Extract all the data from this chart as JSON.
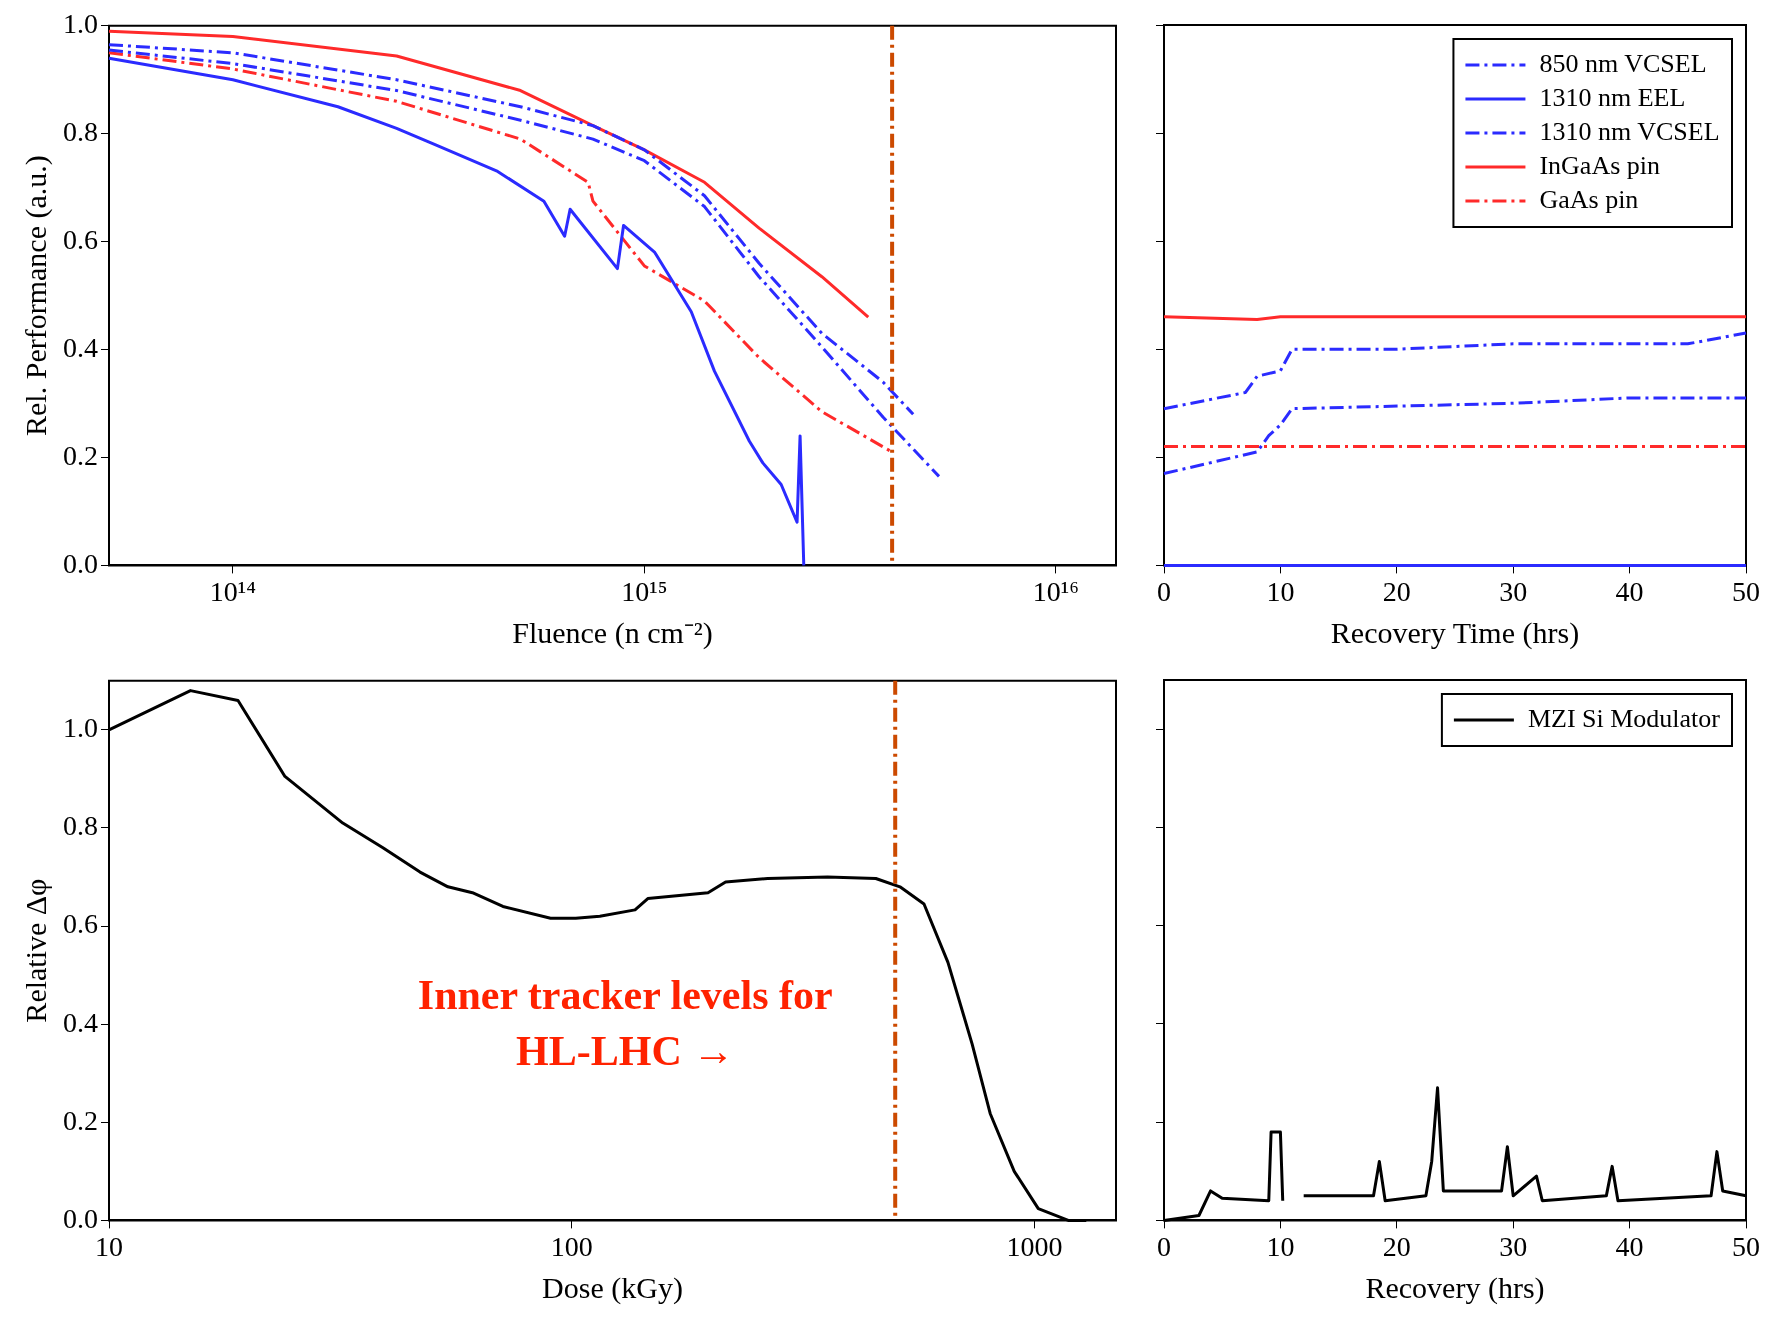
{
  "chart_data": [
    {
      "type": "line",
      "xlabel": "Fluence (n cm⁻²)",
      "ylabel": "Rel. Performance (a.u.)",
      "log": "x",
      "xlim": [
        50000000000000.0,
        1.4e+16
      ],
      "xticks": [
        {
          "value": 100000000000000.0,
          "label": "10¹⁴"
        },
        {
          "value": 1000000000000000.0,
          "label": "10¹⁵"
        },
        {
          "value": 1e+16,
          "label": "10¹⁶"
        }
      ],
      "ylim": [
        0,
        1
      ],
      "yticks": [
        {
          "value": 0,
          "label": "0.0"
        },
        {
          "value": 0.2,
          "label": "0.2"
        },
        {
          "value": 0.4,
          "label": "0.4"
        },
        {
          "value": 0.6,
          "label": "0.6"
        },
        {
          "value": 0.8,
          "label": "0.8"
        },
        {
          "value": 1,
          "label": "1.0"
        }
      ],
      "grid": false,
      "legend": false,
      "marker": "none",
      "series": [
        {
          "color": "#2b2bff",
          "line_style": "dashed",
          "x": [
            50000000000000.0,
            100000000000000.0,
            250000000000000.0,
            500000000000000.0,
            750000000000000.0,
            1000000000000000.0,
            1400000000000000.0,
            1900000000000000.0,
            2700000000000000.0,
            3800000000000000.0,
            4500000000000000.0
          ],
          "values": [
            0.965,
            0.95,
            0.9,
            0.85,
            0.815,
            0.77,
            0.685,
            0.56,
            0.43,
            0.34,
            0.28
          ]
        },
        {
          "color": "#2b2bff",
          "line_style": "solid",
          "x": [
            50000000000000.0,
            100000000000000.0,
            180000000000000.0,
            250000000000000.0,
            310000000000000.0,
            440000000000000.0,
            570000000000000.0,
            640000000000000.0,
            660000000000000.0,
            860000000000000.0,
            890000000000000.0,
            1060000000000000.0,
            1300000000000000.0,
            1480000000000000.0,
            1800000000000000.0,
            1940000000000000.0,
            2150000000000000.0,
            2350000000000000.0,
            2390000000000000.0,
            2440000000000000.0
          ],
          "values": [
            0.94,
            0.9,
            0.85,
            0.81,
            0.78,
            0.73,
            0.675,
            0.61,
            0.66,
            0.55,
            0.63,
            0.58,
            0.47,
            0.36,
            0.23,
            0.19,
            0.15,
            0.08,
            0.24,
            0
          ]
        },
        {
          "color": "#2b2bff",
          "line_style": "dashed",
          "x": [
            50000000000000.0,
            100000000000000.0,
            250000000000000.0,
            500000000000000.0,
            750000000000000.0,
            1000000000000000.0,
            1400000000000000.0,
            1900000000000000.0,
            2700000000000000.0,
            3800000000000000.0,
            5200000000000000.0
          ],
          "values": [
            0.955,
            0.93,
            0.88,
            0.825,
            0.79,
            0.75,
            0.665,
            0.535,
            0.405,
            0.275,
            0.165
          ]
        },
        {
          "color": "#ff2a2a",
          "line_style": "solid",
          "x": [
            50000000000000.0,
            100000000000000.0,
            250000000000000.0,
            500000000000000.0,
            750000000000000.0,
            1000000000000000.0,
            1400000000000000.0,
            1900000000000000.0,
            2700000000000000.0,
            3500000000000000.0
          ],
          "values": [
            0.99,
            0.98,
            0.944,
            0.88,
            0.815,
            0.77,
            0.71,
            0.625,
            0.535,
            0.46
          ]
        },
        {
          "color": "#ff2a2a",
          "line_style": "dashed",
          "x": [
            50000000000000.0,
            100000000000000.0,
            250000000000000.0,
            500000000000000.0,
            730000000000000.0,
            750000000000000.0,
            1000000000000000.0,
            1400000000000000.0,
            1900000000000000.0,
            2700000000000000.0,
            4000000000000000.0
          ],
          "values": [
            0.95,
            0.92,
            0.86,
            0.79,
            0.71,
            0.675,
            0.555,
            0.49,
            0.385,
            0.285,
            0.21
          ]
        }
      ],
      "ref_lines": [
        {
          "axis": "x",
          "value": 4000000000000000.0,
          "color": "#cc4a00",
          "line_style": "dashed"
        }
      ]
    },
    {
      "type": "line",
      "xlabel": "Recovery Time (hrs)",
      "xlim": [
        0,
        50
      ],
      "xticks": [
        0,
        10,
        20,
        30,
        40,
        50
      ],
      "ylim": [
        0,
        1
      ],
      "yticks": [
        0,
        0.2,
        0.4,
        0.6,
        0.8,
        1
      ],
      "tick_labels": "x",
      "grid": false,
      "legend": "top right",
      "marker": "none",
      "series": [
        {
          "name": "850 nm VCSEL",
          "color": "#2b2bff",
          "line_style": "dashed",
          "x": [
            0,
            7,
            8,
            10,
            11,
            20,
            30,
            45,
            50
          ],
          "values": [
            0.29,
            0.32,
            0.35,
            0.36,
            0.4,
            0.4,
            0.41,
            0.41,
            0.43
          ]
        },
        {
          "name": "1310 nm EEL",
          "color": "#2b2bff",
          "line_style": "solid",
          "x": [
            0,
            50
          ],
          "values": [
            0,
            0
          ]
        },
        {
          "name": "1310 nm VCSEL",
          "color": "#2b2bff",
          "line_style": "dashed",
          "x": [
            0,
            8,
            9,
            10,
            11,
            30,
            40,
            50
          ],
          "values": [
            0.17,
            0.21,
            0.24,
            0.26,
            0.29,
            0.3,
            0.31,
            0.31
          ]
        },
        {
          "name": "InGaAs pin",
          "color": "#ff2a2a",
          "line_style": "solid",
          "x": [
            0,
            8,
            10,
            50
          ],
          "values": [
            0.46,
            0.455,
            0.46,
            0.46
          ]
        },
        {
          "name": "GaAs pin",
          "color": "#ff2a2a",
          "line_style": "dashed",
          "x": [
            0,
            50
          ],
          "values": [
            0.22,
            0.22
          ]
        }
      ]
    },
    {
      "type": "line",
      "xlabel": "Dose (kGy)",
      "ylabel": "Relative Δφ",
      "log": "x",
      "xlim": [
        10,
        1500
      ],
      "xticks": [
        10,
        100,
        1000
      ],
      "ylim": [
        0,
        1.1
      ],
      "yticks": [
        {
          "value": 0,
          "label": "0.0"
        },
        {
          "value": 0.2,
          "label": "0.2"
        },
        {
          "value": 0.4,
          "label": "0.4"
        },
        {
          "value": 0.6,
          "label": "0.6"
        },
        {
          "value": 0.8,
          "label": "0.8"
        },
        {
          "value": 1,
          "label": "1.0"
        }
      ],
      "grid": false,
      "legend": false,
      "marker": "none",
      "series": [
        {
          "color": "#000000",
          "line_style": "solid",
          "x": [
            10,
            15,
            19,
            24,
            32,
            39,
            47,
            54,
            61,
            71,
            90,
            102,
            115,
            137,
            146,
            197,
            215,
            265,
            357,
            454,
            512,
            577,
            650,
            733,
            802,
            904,
            1019,
            1183,
            1294
          ],
          "values": [
            1,
            1.08,
            1.06,
            0.905,
            0.81,
            0.76,
            0.71,
            0.68,
            0.668,
            0.64,
            0.616,
            0.616,
            0.62,
            0.633,
            0.656,
            0.668,
            0.69,
            0.697,
            0.7,
            0.697,
            0.68,
            0.645,
            0.526,
            0.36,
            0.218,
            0.1,
            0.024,
            0,
            0
          ]
        }
      ],
      "ref_lines": [
        {
          "axis": "x",
          "value": 500,
          "label": "Inner tracker levels for HL-LHC →",
          "color": "#cc4a00",
          "line_style": "dashed"
        }
      ]
    },
    {
      "type": "line",
      "xlabel": "Recovery (hrs)",
      "xlim": [
        0,
        50
      ],
      "xticks": [
        0,
        10,
        20,
        30,
        40,
        50
      ],
      "ylim": [
        0,
        1.1
      ],
      "yticks": [
        0,
        0.2,
        0.4,
        0.6,
        0.8,
        1
      ],
      "tick_labels": "x",
      "grid": false,
      "legend": "top right",
      "marker": "none",
      "series": [
        {
          "name": "MZI Si Modulator",
          "color": "#000000",
          "line_style": "solid",
          "x": [
            0,
            3,
            4,
            5,
            9,
            9.2,
            10,
            10.2,
            11,
            12,
            18,
            18.5,
            19,
            22.5,
            23,
            23.5,
            24,
            29,
            29.5,
            30,
            32,
            32.5,
            38,
            38.5,
            39,
            47,
            47.5,
            48,
            50
          ],
          "values": [
            0,
            0.01,
            0.06,
            0.045,
            0.04,
            0.18,
            0.18,
            0.04,
            null,
            0.05,
            0.05,
            0.12,
            0.04,
            0.05,
            0.12,
            0.27,
            0.06,
            0.06,
            0.15,
            0.05,
            0.09,
            0.04,
            0.05,
            0.11,
            0.04,
            0.05,
            0.14,
            0.06,
            0.05
          ]
        }
      ]
    }
  ]
}
